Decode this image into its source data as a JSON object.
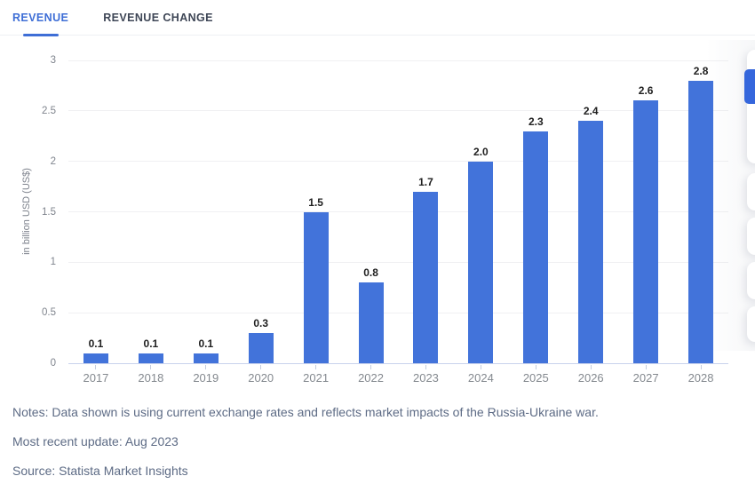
{
  "tabs": [
    {
      "label": "REVENUE",
      "active": true
    },
    {
      "label": "REVENUE CHANGE",
      "active": false
    }
  ],
  "chart_data": {
    "type": "bar",
    "title": "",
    "categories": [
      "2017",
      "2018",
      "2019",
      "2020",
      "2021",
      "2022",
      "2023",
      "2024",
      "2025",
      "2026",
      "2027",
      "2028"
    ],
    "values": [
      0.1,
      0.1,
      0.1,
      0.3,
      1.5,
      0.8,
      1.7,
      2.0,
      2.3,
      2.4,
      2.6,
      2.8
    ],
    "value_labels": [
      "0.1",
      "0.1",
      "0.1",
      "0.3",
      "1.5",
      "0.8",
      "1.7",
      "2.0",
      "2.3",
      "2.4",
      "2.6",
      "2.8"
    ],
    "xlabel": "",
    "ylabel": "in billion USD (US$)",
    "ylim": [
      0,
      3
    ],
    "yticks": [
      "0",
      "0.5",
      "1",
      "1.5",
      "2",
      "2.5",
      "3"
    ],
    "ytick_values": [
      0,
      0.5,
      1,
      1.5,
      2,
      2.5,
      3
    ],
    "grid": true,
    "legend": "none",
    "bar_color": "#4273da"
  },
  "footer": {
    "notes": "Notes: Data shown is using current exchange rates and reflects market impacts of the Russia-Ukraine war.",
    "update": "Most recent update: Aug 2023",
    "source": "Source: Statista Market Insights"
  },
  "colors": {
    "accent": "#3e6ed6",
    "bar": "#4273da",
    "chip": "#3566dc",
    "grid": "#f0f0f2",
    "axis": "#c9d3ec",
    "notes_text": "#5d6b85",
    "tab_inactive": "#3e4656"
  }
}
